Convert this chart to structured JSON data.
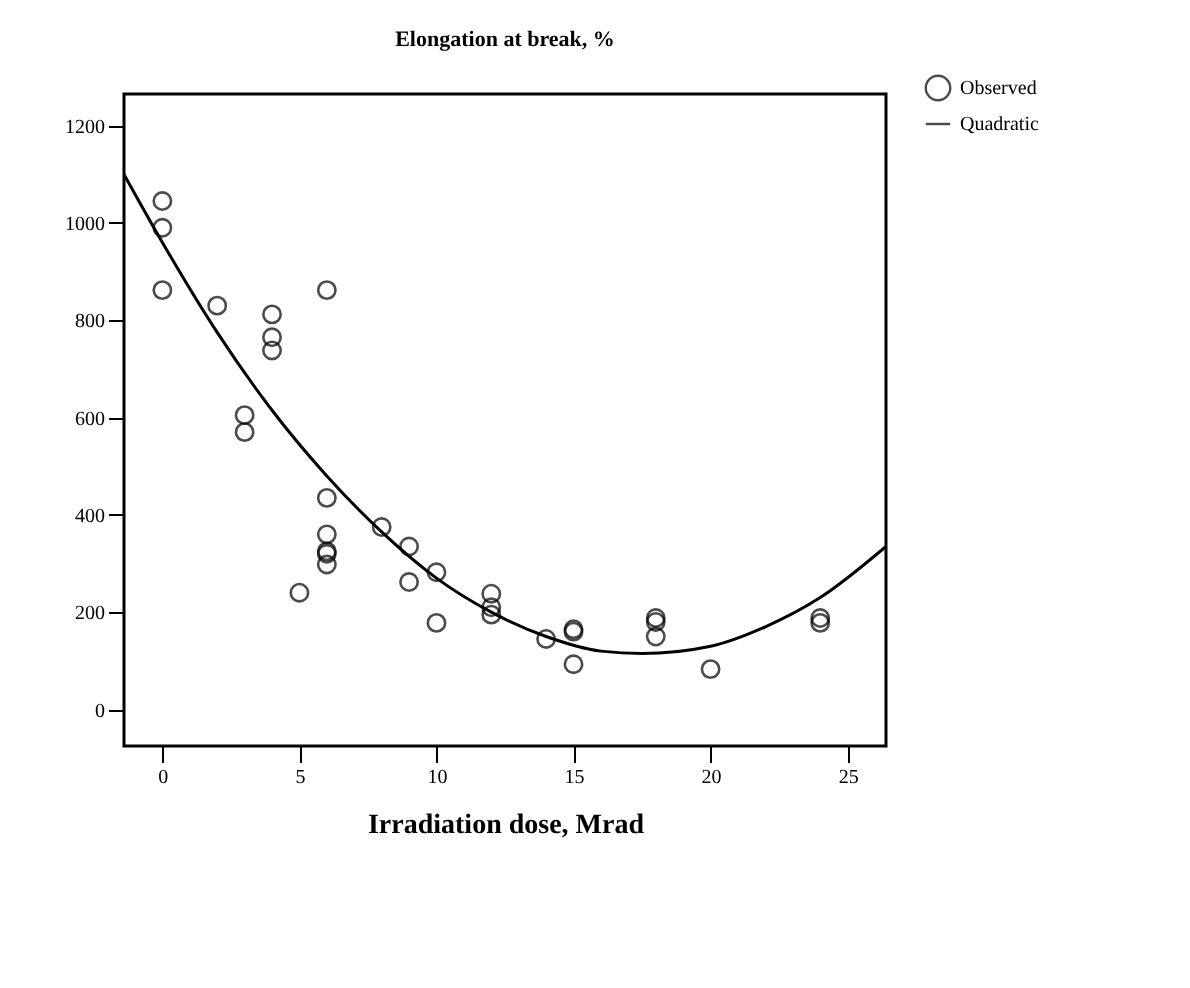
{
  "chart_data": {
    "type": "scatter",
    "title": "Elongation at break, %",
    "xlabel": "Irradiation dose,  Mrad",
    "xlim": [
      -1.4,
      26.4
    ],
    "xticks": [
      0,
      5,
      10,
      15,
      20,
      25
    ],
    "ylim": [
      -75,
      1265
    ],
    "yticks": [
      0,
      200,
      400,
      600,
      800,
      1000,
      1200
    ],
    "grid": false,
    "legend": "top right",
    "series": [
      {
        "name": "Observed",
        "marker": "circle",
        "color": "#000000",
        "x": [
          0,
          0,
          0,
          2,
          3,
          3,
          4,
          4,
          4,
          5,
          6,
          6,
          6,
          6,
          6,
          6,
          8,
          9,
          9,
          10,
          10,
          12,
          12,
          12,
          14,
          15,
          15,
          15,
          18,
          18,
          18,
          20,
          24,
          24
        ],
        "values": [
          1045,
          990,
          862,
          830,
          605,
          570,
          812,
          765,
          738,
          240,
          862,
          435,
          360,
          325,
          320,
          298,
          375,
          335,
          262,
          282,
          178,
          238,
          210,
          195,
          145,
          165,
          160,
          93,
          188,
          180,
          150,
          83,
          188,
          178
        ]
      },
      {
        "name": "Quadratic",
        "type": "line",
        "color": "#000000",
        "line_style": "solid",
        "x": [
          -1.4,
          0,
          2,
          4,
          6,
          8,
          10,
          12,
          14,
          16,
          17.5,
          20,
          22,
          24,
          26.4
        ],
        "values": [
          1100,
          960,
          775,
          615,
          480,
          365,
          270,
          200,
          150,
          120,
          115,
          130,
          170,
          230,
          335
        ]
      }
    ]
  }
}
